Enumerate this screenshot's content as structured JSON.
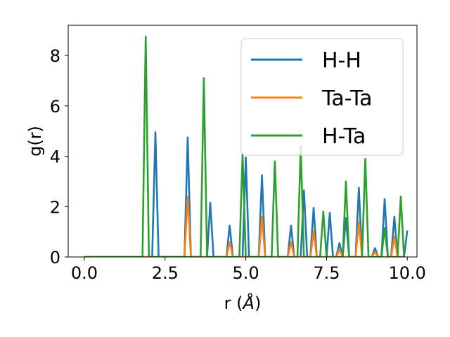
{
  "chart_data": {
    "type": "line",
    "title": "",
    "xlabel": "r (",
    "xlabel_unit": "Å",
    "xlabel_close": ")",
    "ylabel": "g(r)",
    "xlim": [
      -0.5,
      10.3
    ],
    "ylim": [
      0,
      9.2
    ],
    "x_ticks": [
      0.0,
      2.5,
      5.0,
      7.5,
      10.0
    ],
    "x_tick_labels": [
      "0.0",
      "2.5",
      "5.0",
      "7.5",
      "10.0"
    ],
    "y_ticks": [
      0,
      2,
      4,
      6,
      8
    ],
    "y_tick_labels": [
      "0",
      "2",
      "4",
      "6",
      "8"
    ],
    "grid": false,
    "legend_position": "top-right",
    "series": [
      {
        "name": "H-H",
        "color": "#1f77b4",
        "x": [
          0.0,
          2.1,
          2.2,
          2.3,
          3.1,
          3.2,
          3.3,
          3.8,
          3.9,
          4.0,
          4.4,
          4.5,
          4.6,
          4.9,
          5.0,
          5.1,
          5.4,
          5.5,
          5.6,
          6.3,
          6.4,
          6.5,
          6.7,
          6.8,
          6.9,
          7.0,
          7.1,
          7.2,
          7.5,
          7.6,
          7.7,
          7.8,
          7.9,
          8.0,
          8.1,
          8.2,
          8.4,
          8.5,
          8.6,
          8.9,
          9.0,
          9.1,
          9.2,
          9.3,
          9.4,
          9.5,
          9.6,
          9.7,
          9.9,
          10.0
        ],
        "y": [
          0.0,
          0.0,
          4.95,
          0.0,
          0.0,
          4.75,
          0.0,
          0.0,
          2.15,
          0.0,
          0.0,
          1.25,
          0.0,
          0.0,
          3.95,
          0.0,
          0.0,
          3.25,
          0.0,
          0.0,
          1.25,
          0.0,
          0.0,
          2.65,
          0.0,
          0.0,
          1.95,
          0.0,
          0.0,
          1.75,
          0.0,
          0.0,
          0.55,
          0.0,
          1.55,
          0.0,
          0.0,
          2.75,
          0.0,
          0.0,
          0.35,
          0.0,
          0.0,
          2.3,
          0.0,
          0.0,
          1.6,
          0.0,
          0.0,
          1.05
        ]
      },
      {
        "name": "Ta-Ta",
        "color": "#ff7f0e",
        "x": [
          0.0,
          3.1,
          3.2,
          3.3,
          4.4,
          4.5,
          4.6,
          5.4,
          5.5,
          5.6,
          6.3,
          6.4,
          6.5,
          7.0,
          7.1,
          7.2,
          7.8,
          7.9,
          8.0,
          8.4,
          8.5,
          8.6,
          8.9,
          9.0,
          9.1,
          9.5,
          9.6,
          9.7,
          9.8
        ],
        "y": [
          0.0,
          0.0,
          2.4,
          0.0,
          0.0,
          0.6,
          0.0,
          0.0,
          1.6,
          0.0,
          0.0,
          0.6,
          0.0,
          0.0,
          1.0,
          0.0,
          0.0,
          0.3,
          0.0,
          0.0,
          1.4,
          0.0,
          0.0,
          0.2,
          0.0,
          0.0,
          0.8,
          0.0,
          0.0
        ]
      },
      {
        "name": "H-Ta",
        "color": "#2ca02c",
        "x": [
          0.0,
          1.8,
          1.9,
          2.0,
          3.6,
          3.7,
          3.8,
          4.8,
          4.9,
          5.0,
          5.8,
          5.9,
          6.0,
          6.6,
          6.7,
          6.8,
          7.3,
          7.4,
          7.5,
          8.0,
          8.1,
          8.2,
          8.6,
          8.7,
          8.8,
          9.2,
          9.3,
          9.4,
          9.7,
          9.8,
          9.9
        ],
        "y": [
          0.0,
          0.0,
          8.75,
          0.0,
          0.0,
          7.1,
          0.0,
          0.0,
          4.1,
          0.0,
          0.0,
          3.8,
          0.0,
          0.0,
          4.4,
          0.0,
          0.0,
          1.8,
          0.0,
          0.0,
          3.0,
          0.0,
          0.0,
          3.9,
          0.0,
          0.0,
          1.15,
          0.0,
          0.0,
          2.4,
          0.0
        ]
      }
    ]
  }
}
